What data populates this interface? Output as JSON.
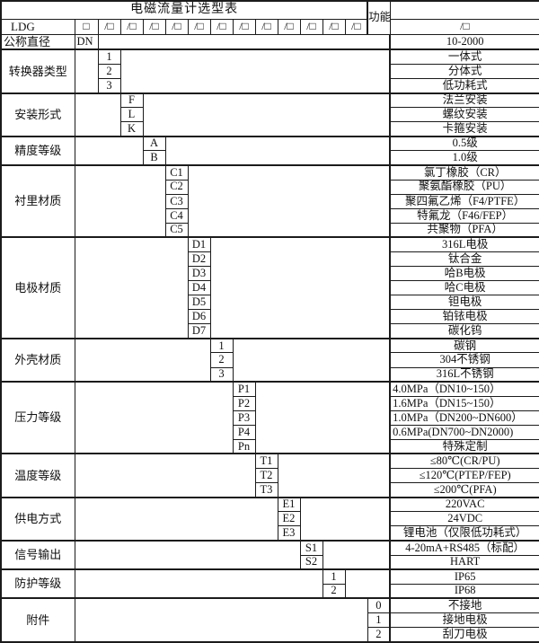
{
  "title": "电磁流量计选型表",
  "function_header": "功能说明",
  "model_row": {
    "prefix": "LDG",
    "first_box": "□",
    "slash_box": "/□",
    "positions": 13
  },
  "diameter_row": {
    "label": "公称直径",
    "code": "DN",
    "desc": "10-2000"
  },
  "sections": [
    {
      "label": "转换器类型",
      "col": 0,
      "rows": [
        {
          "code": "1",
          "desc": "一体式"
        },
        {
          "code": "2",
          "desc": "分体式"
        },
        {
          "code": "3",
          "desc": "低功耗式"
        }
      ]
    },
    {
      "label": "安装形式",
      "col": 1,
      "rows": [
        {
          "code": "F",
          "desc": "法兰安装"
        },
        {
          "code": "L",
          "desc": "螺纹安装"
        },
        {
          "code": "K",
          "desc": "卡箍安装"
        }
      ]
    },
    {
      "label": "精度等级",
      "col": 2,
      "rows": [
        {
          "code": "A",
          "desc": "0.5级"
        },
        {
          "code": "B",
          "desc": "1.0级"
        }
      ]
    },
    {
      "label": "衬里材质",
      "col": 3,
      "rows": [
        {
          "code": "C1",
          "desc": "氯丁橡胶（CR）"
        },
        {
          "code": "C2",
          "desc": "聚氨酯橡胶（PU）"
        },
        {
          "code": "C3",
          "desc": "聚四氟乙烯（F4/PTFE）"
        },
        {
          "code": "C4",
          "desc": "特氟龙（F46/FEP）"
        },
        {
          "code": "C5",
          "desc": "共聚物（PFA）"
        }
      ]
    },
    {
      "label": "电极材质",
      "col": 4,
      "rows": [
        {
          "code": "D1",
          "desc": "316L电极"
        },
        {
          "code": "D2",
          "desc": "钛合金"
        },
        {
          "code": "D3",
          "desc": "哈B电极"
        },
        {
          "code": "D4",
          "desc": "哈C电极"
        },
        {
          "code": "D5",
          "desc": "钽电极"
        },
        {
          "code": "D6",
          "desc": "铂铱电极"
        },
        {
          "code": "D7",
          "desc": "碳化钨"
        }
      ]
    },
    {
      "label": "外壳材质",
      "col": 5,
      "rows": [
        {
          "code": "1",
          "desc": "碳钢"
        },
        {
          "code": "2",
          "desc": "304不锈钢"
        },
        {
          "code": "3",
          "desc": "316L不锈钢"
        }
      ]
    },
    {
      "label": "压力等级",
      "col": 6,
      "rows": [
        {
          "code": "P1",
          "desc": "4.0MPa（DN10~150）",
          "align": "left"
        },
        {
          "code": "P2",
          "desc": "1.6MPa（DN15~150）",
          "align": "left"
        },
        {
          "code": "P3",
          "desc": "1.0MPa（DN200~DN600）",
          "align": "left"
        },
        {
          "code": "P4",
          "desc": "0.6MPa(DN700~DN2000)",
          "align": "left"
        },
        {
          "code": "Pn",
          "desc": "特殊定制"
        }
      ]
    },
    {
      "label": "温度等级",
      "col": 7,
      "rows": [
        {
          "code": "T1",
          "desc": "≤80℃(CR/PU)"
        },
        {
          "code": "T2",
          "desc": "≤120℃(PTEP/FEP)"
        },
        {
          "code": "T3",
          "desc": "≤200℃(PFA)"
        }
      ]
    },
    {
      "label": "供电方式",
      "col": 8,
      "rows": [
        {
          "code": "E1",
          "desc": "220VAC"
        },
        {
          "code": "E2",
          "desc": "24VDC"
        },
        {
          "code": "E3",
          "desc": "锂电池（仅限低功耗式）"
        }
      ]
    },
    {
      "label": "信号输出",
      "col": 9,
      "rows": [
        {
          "code": "S1",
          "desc": "4-20mA+RS485（标配）"
        },
        {
          "code": "S2",
          "desc": "HART"
        }
      ]
    },
    {
      "label": "防护等级",
      "col": 10,
      "rows": [
        {
          "code": "1",
          "desc": "IP65"
        },
        {
          "code": "2",
          "desc": "IP68"
        }
      ]
    },
    {
      "label": "附件",
      "col": 12,
      "rows": [
        {
          "code": "0",
          "desc": "不接地"
        },
        {
          "code": "1",
          "desc": "接地电极"
        },
        {
          "code": "2",
          "desc": "刮刀电极"
        }
      ]
    }
  ]
}
